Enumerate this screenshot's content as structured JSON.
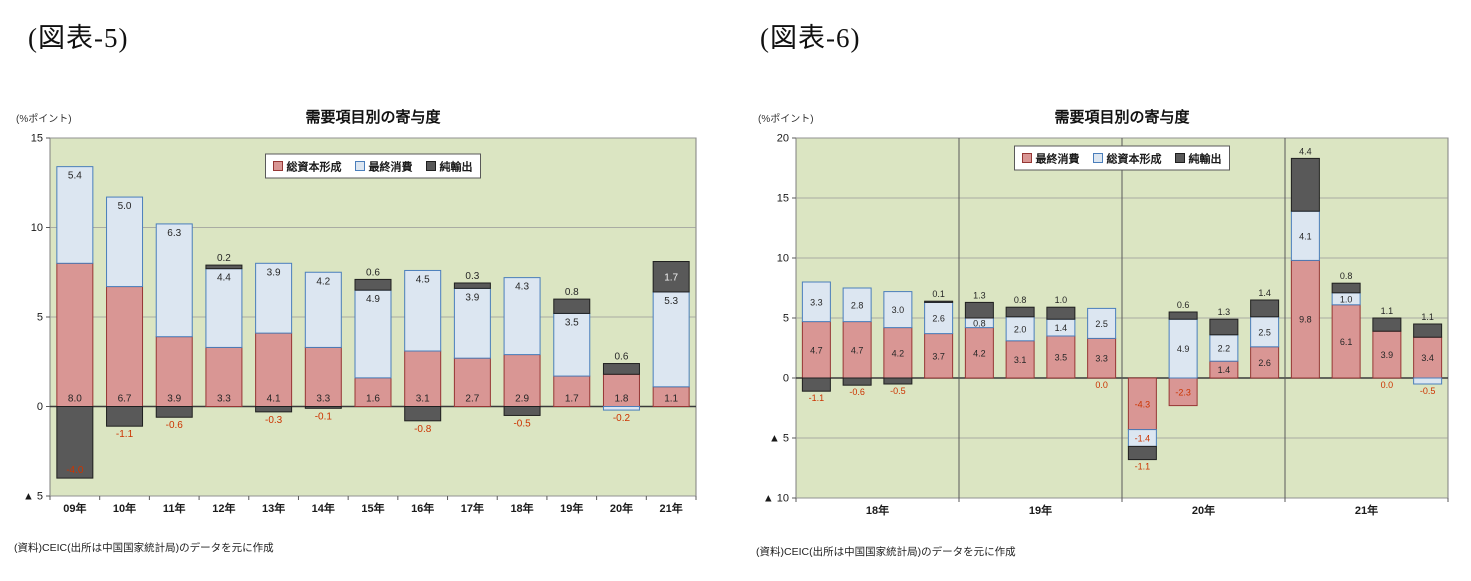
{
  "figures": [
    {
      "heading": "(図表-5)",
      "source": "(資料)CEIC(出所は中国国家統計局)のデータを元に作成"
    },
    {
      "heading": "(図表-6)",
      "source": "(資料)CEIC(出所は中国国家統計局)のデータを元に作成"
    }
  ],
  "colors": {
    "plot_bg": "#dbe5c2",
    "grid": "#999999",
    "plot_border": "#7f7f7f",
    "zero_line": "#3a3a3a",
    "separator": "#595959",
    "positive_label": "#262626",
    "negative_label": "#cc3300",
    "inside_dark_label": "#f2f2f2"
  },
  "chart_data": [
    {
      "type": "bar",
      "stacked": true,
      "title": "需要項目別の寄与度",
      "ylabel": "(%ポイント)",
      "ylim": [
        -5,
        15
      ],
      "grid": true,
      "legend_position": "top-center-inside",
      "yticks": [
        {
          "v": 15,
          "label": "15"
        },
        {
          "v": 10,
          "label": "10"
        },
        {
          "v": 5,
          "label": "5"
        },
        {
          "v": 0,
          "label": "0"
        },
        {
          "v": -5,
          "label": "▲ 5"
        }
      ],
      "categories": [
        "09年",
        "10年",
        "11年",
        "12年",
        "13年",
        "14年",
        "15年",
        "16年",
        "17年",
        "18年",
        "19年",
        "20年",
        "21年"
      ],
      "legend": [
        "総資本形成",
        "最終消費",
        "純輸出"
      ],
      "series": [
        {
          "name": "総資本形成",
          "fill": "#d99694",
          "border": "#963634",
          "values": [
            8.0,
            6.7,
            3.9,
            3.3,
            4.1,
            3.3,
            1.6,
            3.1,
            2.7,
            2.9,
            1.7,
            1.8,
            1.1
          ]
        },
        {
          "name": "最終消費",
          "fill": "#dce6f1",
          "border": "#4a7ebb",
          "values": [
            5.4,
            5.0,
            6.3,
            4.4,
            3.9,
            4.2,
            4.9,
            4.5,
            3.9,
            4.3,
            3.5,
            -0.2,
            5.3
          ]
        },
        {
          "name": "純輸出",
          "fill": "#595959",
          "border": "#1f1f1f",
          "values": [
            -4.0,
            -1.1,
            -0.6,
            0.2,
            -0.3,
            -0.1,
            0.6,
            -0.8,
            0.3,
            -0.5,
            0.8,
            0.6,
            1.7
          ]
        }
      ]
    },
    {
      "type": "bar",
      "stacked": true,
      "title": "需要項目別の寄与度",
      "ylabel": "(%ポイント)",
      "ylim": [
        -10,
        20
      ],
      "grid": true,
      "legend_position": "top-center-inside",
      "yticks": [
        {
          "v": 20,
          "label": "20"
        },
        {
          "v": 15,
          "label": "15"
        },
        {
          "v": 10,
          "label": "10"
        },
        {
          "v": 5,
          "label": "5"
        },
        {
          "v": 0,
          "label": "0"
        },
        {
          "v": -5,
          "label": "▲ 5"
        },
        {
          "v": -10,
          "label": "▲ 10"
        }
      ],
      "groups": [
        {
          "label": "18年",
          "count": 4
        },
        {
          "label": "19年",
          "count": 4
        },
        {
          "label": "20年",
          "count": 4
        },
        {
          "label": "21年",
          "count": 4
        }
      ],
      "legend": [
        "最終消費",
        "総資本形成",
        "純輸出"
      ],
      "series": [
        {
          "name": "最終消費",
          "fill": "#d99694",
          "border": "#963634",
          "values": [
            4.7,
            4.7,
            4.2,
            3.7,
            4.2,
            3.1,
            3.5,
            3.3,
            -4.3,
            -2.3,
            1.4,
            2.6,
            9.8,
            6.1,
            3.9,
            3.4
          ]
        },
        {
          "name": "総資本形成",
          "fill": "#dce6f1",
          "border": "#4a7ebb",
          "values": [
            3.3,
            2.8,
            3.0,
            2.6,
            0.8,
            2.0,
            1.4,
            2.5,
            -1.4,
            4.9,
            2.2,
            2.5,
            4.1,
            1.0,
            -0.0,
            -0.5
          ]
        },
        {
          "name": "純輸出",
          "fill": "#595959",
          "border": "#1f1f1f",
          "values": [
            -1.1,
            -0.6,
            -0.5,
            0.1,
            1.3,
            0.8,
            1.0,
            -0.0,
            -1.1,
            0.6,
            1.3,
            1.4,
            4.4,
            0.8,
            1.1,
            1.1
          ]
        }
      ]
    }
  ]
}
